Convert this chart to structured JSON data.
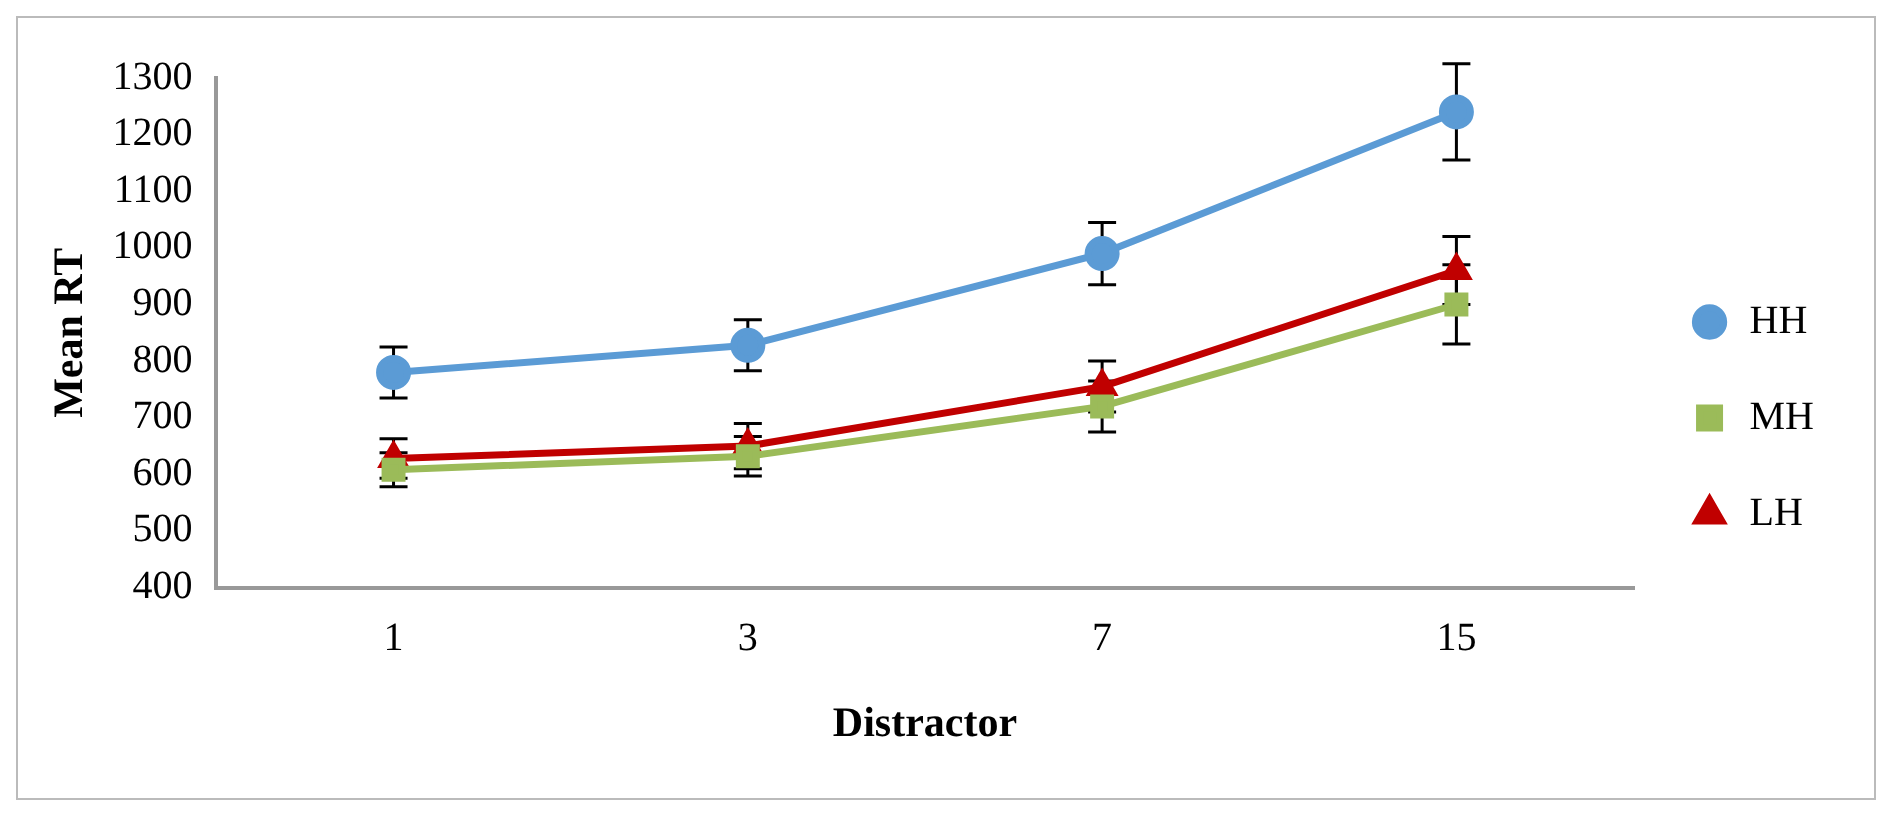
{
  "chart_data": {
    "type": "line",
    "xlabel": "Distractor",
    "ylabel": "Mean RT",
    "categories": [
      "1",
      "3",
      "7",
      "15"
    ],
    "ylim": [
      400,
      1300
    ],
    "yticks": [
      400,
      500,
      600,
      700,
      800,
      900,
      1000,
      1100,
      1200,
      1300
    ],
    "grid": false,
    "legend": "right",
    "series": [
      {
        "name": "HH",
        "color": "#5b9bd5",
        "marker": "circle",
        "values": [
          780,
          828,
          990,
          1240
        ],
        "errors": [
          45,
          45,
          55,
          85
        ]
      },
      {
        "name": "MH",
        "color": "#9bbb59",
        "marker": "square",
        "values": [
          608,
          632,
          720,
          900
        ],
        "errors": [
          30,
          35,
          45,
          70
        ]
      },
      {
        "name": "LH",
        "color": "#c00000",
        "marker": "triangle",
        "values": [
          628,
          650,
          755,
          960
        ],
        "errors": [
          35,
          40,
          45,
          60
        ]
      }
    ]
  }
}
